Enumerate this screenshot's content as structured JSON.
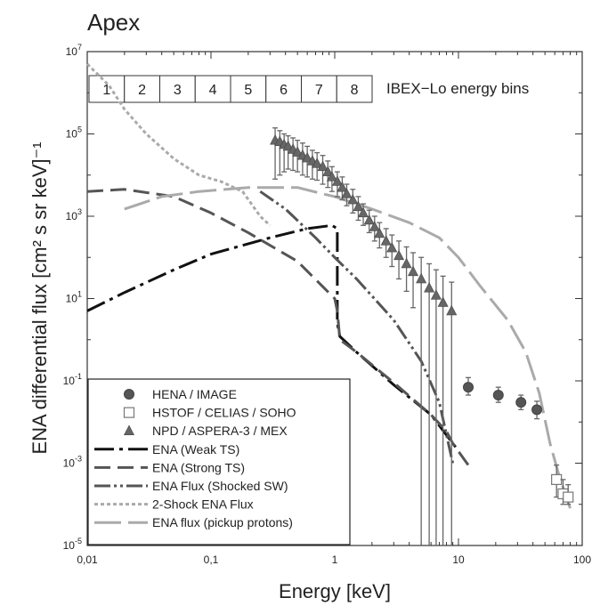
{
  "chart_data": {
    "type": "line",
    "title": "Apex",
    "xlabel": "Energy [keV]",
    "ylabel": "ENA differential flux [cm² s sr keV]⁻¹",
    "xscale": "log",
    "yscale": "log",
    "xlim": [
      0.01,
      100
    ],
    "ylim": [
      1e-05,
      10000000
    ],
    "x_ticks": [
      {
        "value": 0.01,
        "label": "0,01"
      },
      {
        "value": 0.1,
        "label": "0,1"
      },
      {
        "value": 1,
        "label": "1"
      },
      {
        "value": 10,
        "label": "10"
      },
      {
        "value": 100,
        "label": "100"
      }
    ],
    "y_ticks": [
      {
        "value": 1e-05,
        "base": "10",
        "exp": "-5"
      },
      {
        "value": 0.001,
        "base": "10",
        "exp": "-3"
      },
      {
        "value": 0.1,
        "base": "10",
        "exp": "-1"
      },
      {
        "value": 10,
        "base": "10",
        "exp": "1"
      },
      {
        "value": 1000,
        "base": "10",
        "exp": "3"
      },
      {
        "value": 100000,
        "base": "10",
        "exp": "5"
      },
      {
        "value": 10000000,
        "base": "10",
        "exp": "7"
      }
    ],
    "energy_bins": {
      "label": "IBEX−Lo energy bins",
      "bins": [
        "1",
        "2",
        "3",
        "4",
        "5",
        "6",
        "7",
        "8"
      ]
    },
    "series": [
      {
        "name": "ENA (Weak TS)",
        "style": "dashdot",
        "color": "#111111",
        "points": [
          [
            0.01,
            5
          ],
          [
            0.02,
            14
          ],
          [
            0.05,
            50
          ],
          [
            0.1,
            120
          ],
          [
            0.3,
            300
          ],
          [
            0.6,
            500
          ],
          [
            0.95,
            600
          ],
          [
            1.05,
            500
          ],
          [
            1.05,
            2.5
          ],
          [
            1.1,
            1.2
          ],
          [
            1.5,
            0.5
          ],
          [
            3,
            0.08
          ],
          [
            6,
            0.015
          ],
          [
            10,
            0.002
          ]
        ]
      },
      {
        "name": "ENA (Strong TS)",
        "style": "dashed",
        "color": "#555555",
        "points": [
          [
            0.01,
            4000
          ],
          [
            0.02,
            4500
          ],
          [
            0.05,
            3000
          ],
          [
            0.1,
            1200
          ],
          [
            0.2,
            400
          ],
          [
            0.5,
            80
          ],
          [
            1,
            10
          ],
          [
            1.05,
            5
          ],
          [
            1.1,
            1
          ],
          [
            1.5,
            0.5
          ],
          [
            3,
            0.09
          ],
          [
            6,
            0.015
          ],
          [
            8,
            0.006
          ],
          [
            9,
            0.003
          ],
          [
            12,
            0.0009
          ]
        ]
      },
      {
        "name": "ENA Flux (Shocked SW)",
        "style": "dashdotdot",
        "color": "#555555",
        "points": [
          [
            0.25,
            4000
          ],
          [
            0.4,
            1500
          ],
          [
            0.7,
            300
          ],
          [
            1,
            100
          ],
          [
            1.5,
            30
          ],
          [
            3,
            3
          ],
          [
            5,
            0.3
          ],
          [
            7,
            0.03
          ],
          [
            9,
            0.001
          ]
        ]
      },
      {
        "name": "2-Shock ENA Flux",
        "style": "dotted",
        "color": "#aaaaaa",
        "points": [
          [
            0.01,
            5000000
          ],
          [
            0.015,
            1500000
          ],
          [
            0.02,
            400000
          ],
          [
            0.03,
            100000
          ],
          [
            0.05,
            25000
          ],
          [
            0.08,
            10000
          ],
          [
            0.12,
            7000
          ],
          [
            0.18,
            4000
          ],
          [
            0.25,
            1000
          ],
          [
            0.3,
            600
          ]
        ]
      },
      {
        "name": "ENA flux (pickup protons)",
        "style": "longdash",
        "color": "#aaaaaa",
        "points": [
          [
            0.02,
            1500
          ],
          [
            0.04,
            3000
          ],
          [
            0.08,
            4000
          ],
          [
            0.2,
            5000
          ],
          [
            0.3,
            5000
          ],
          [
            0.5,
            5000
          ],
          [
            0.8,
            3500
          ],
          [
            1,
            3000
          ],
          [
            2,
            1500
          ],
          [
            4,
            700
          ],
          [
            7,
            300
          ],
          [
            10,
            100
          ],
          [
            15,
            20
          ],
          [
            25,
            3
          ],
          [
            35,
            0.5
          ],
          [
            45,
            0.05
          ],
          [
            55,
            0.003
          ],
          [
            65,
            0.0005
          ],
          [
            80,
            8e-05
          ]
        ]
      }
    ],
    "markers": [
      {
        "name": "HENA / IMAGE",
        "marker": "circle",
        "color": "#555555",
        "points": [
          [
            12,
            0.07,
            0.045,
            0.12
          ],
          [
            21,
            0.045,
            0.03,
            0.07
          ],
          [
            32,
            0.03,
            0.02,
            0.045
          ],
          [
            43,
            0.02,
            0.012,
            0.032
          ]
        ]
      },
      {
        "name": "HSTOF / CELIAS / SOHO",
        "marker": "square",
        "color": "#ffffff",
        "points": [
          [
            62,
            0.0004,
            0.00015,
            0.0009
          ],
          [
            70,
            0.00018,
            0.0001,
            0.0004
          ],
          [
            77,
            0.00015,
            0.0001,
            0.0003
          ]
        ]
      },
      {
        "name": "NPD / ASPERA-3 / MEX",
        "marker": "triangle",
        "color": "#666666",
        "points": [
          [
            0.33,
            70000,
            8000,
            140000
          ],
          [
            0.36,
            65000,
            10000,
            120000
          ],
          [
            0.39,
            55000,
            12000,
            100000
          ],
          [
            0.42,
            50000,
            14000,
            90000
          ],
          [
            0.46,
            42000,
            13000,
            80000
          ],
          [
            0.5,
            36000,
            12000,
            70000
          ],
          [
            0.55,
            30000,
            10000,
            60000
          ],
          [
            0.6,
            26000,
            9000,
            50000
          ],
          [
            0.66,
            22000,
            8000,
            40000
          ],
          [
            0.72,
            19000,
            7500,
            35000
          ],
          [
            0.8,
            16000,
            6000,
            30000
          ],
          [
            0.88,
            12000,
            5000,
            22000
          ],
          [
            0.95,
            9000,
            4000,
            16000
          ],
          [
            1.05,
            7000,
            3000,
            12000
          ],
          [
            1.15,
            5000,
            2500,
            9000
          ],
          [
            1.25,
            3500,
            1800,
            6000
          ],
          [
            1.4,
            2500,
            1200,
            4500
          ],
          [
            1.55,
            1700,
            800,
            3000
          ],
          [
            1.7,
            1200,
            600,
            2000
          ],
          [
            1.9,
            800,
            400,
            1400
          ],
          [
            2.1,
            550,
            250,
            1000
          ],
          [
            2.3,
            380,
            170,
            700
          ],
          [
            2.6,
            250,
            100,
            500
          ],
          [
            2.9,
            170,
            60,
            350
          ],
          [
            3.3,
            110,
            30,
            250
          ],
          [
            3.8,
            70,
            15,
            180
          ],
          [
            4.3,
            45,
            6,
            130
          ],
          [
            5,
            30,
            1e-05,
            100
          ],
          [
            5.8,
            18,
            1e-05,
            70
          ],
          [
            6.6,
            12,
            1e-05,
            50
          ],
          [
            7.5,
            8,
            1e-05,
            35
          ],
          [
            8.8,
            5,
            1e-05,
            25
          ]
        ]
      }
    ],
    "legend_position": "bottom-left"
  }
}
